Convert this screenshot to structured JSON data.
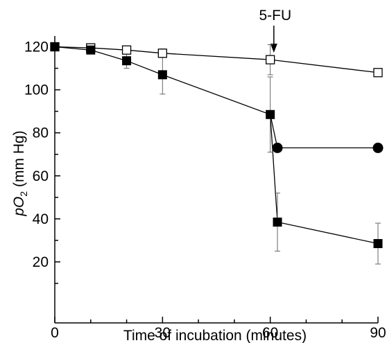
{
  "chart_data": {
    "type": "line",
    "xlabel": "Time of incubation (minutes)",
    "ylabel": {
      "p": "p",
      "o": "O",
      "sub": "2",
      "unit": " (mm Hg)"
    },
    "xlim": [
      0,
      90
    ],
    "ylim": [
      0,
      125
    ],
    "x_ticks": [
      0,
      30,
      60,
      90
    ],
    "y_ticks": [
      20,
      40,
      60,
      80,
      100,
      120
    ],
    "grid": false,
    "annotation": {
      "text": "5-FU",
      "x": 61
    },
    "series": [
      {
        "marker": "open-square",
        "x": [
          0,
          10,
          20,
          30,
          60,
          90
        ],
        "y": [
          120,
          119.5,
          118.5,
          117,
          114,
          108
        ],
        "err": [
          0,
          1.5,
          1.5,
          2,
          7,
          0
        ]
      },
      {
        "marker": "filled-square",
        "x": [
          0,
          10,
          20,
          30,
          60,
          62,
          90
        ],
        "y": [
          120,
          118.5,
          113.5,
          107,
          88.5,
          38.5,
          28.5
        ],
        "err": [
          0,
          1.5,
          3.5,
          9,
          17.5,
          13.5,
          9.5
        ]
      },
      {
        "marker": "filled-circle",
        "x": [
          60,
          62,
          90
        ],
        "y": [
          88.5,
          73,
          73
        ],
        "err": [
          0,
          0,
          0
        ]
      }
    ]
  }
}
